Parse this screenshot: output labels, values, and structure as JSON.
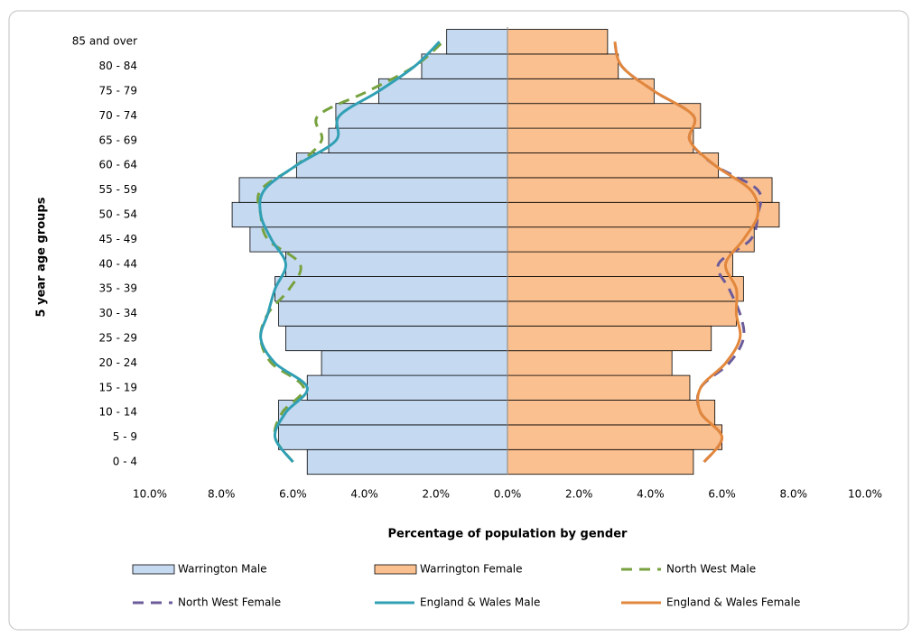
{
  "chart_data": {
    "type": "pyramid",
    "xlabel": "Percentage of population by gender",
    "ylabel": "5 year age groups",
    "categories": [
      "0 - 4",
      "5 - 9",
      "10 - 14",
      "15 - 19",
      "20 - 24",
      "25 - 29",
      "30 - 34",
      "35 - 39",
      "40 - 44",
      "45 - 49",
      "50 - 54",
      "55 - 59",
      "60 - 64",
      "65 - 69",
      "70 - 74",
      "75 - 79",
      "80 - 84",
      "85 and over"
    ],
    "xlim": [
      -10,
      10
    ],
    "xticks": [
      {
        "value": -10,
        "label": "10.0%"
      },
      {
        "value": -8,
        "label": "8.0%"
      },
      {
        "value": -6,
        "label": "6.0%"
      },
      {
        "value": -4,
        "label": "4.0%"
      },
      {
        "value": -2,
        "label": "2.0%"
      },
      {
        "value": 0,
        "label": "0.0%"
      },
      {
        "value": 2,
        "label": "2.0%"
      },
      {
        "value": 4,
        "label": "4.0%"
      },
      {
        "value": 6,
        "label": "6.0%"
      },
      {
        "value": 8,
        "label": "8.0%"
      },
      {
        "value": 10,
        "label": "10.0%"
      }
    ],
    "series": [
      {
        "name": "Warrington Male",
        "kind": "bar",
        "side": "left",
        "color": "#c5d9f1",
        "values": [
          5.6,
          6.4,
          6.4,
          5.6,
          5.2,
          6.2,
          6.4,
          6.5,
          6.2,
          7.2,
          7.7,
          7.5,
          5.9,
          5.0,
          4.8,
          3.6,
          2.4,
          1.7
        ]
      },
      {
        "name": "Warrington Female",
        "kind": "bar",
        "side": "right",
        "color": "#fac090",
        "values": [
          5.2,
          6.0,
          5.8,
          5.1,
          4.6,
          5.7,
          6.4,
          6.6,
          6.3,
          6.9,
          7.6,
          7.4,
          5.9,
          5.2,
          5.4,
          4.1,
          3.1,
          2.8
        ]
      },
      {
        "name": "North West Male",
        "kind": "line",
        "dash": true,
        "side": "left",
        "color": "#77a23f",
        "values": [
          6.0,
          6.5,
          6.3,
          5.7,
          6.6,
          6.9,
          6.7,
          6.1,
          5.8,
          6.7,
          6.9,
          6.9,
          5.9,
          5.2,
          5.3,
          3.9,
          2.6,
          1.8
        ]
      },
      {
        "name": "North West Female",
        "kind": "line",
        "dash": true,
        "side": "right",
        "color": "#6b5b9a",
        "values": [
          5.5,
          6.0,
          5.4,
          5.4,
          6.2,
          6.6,
          6.5,
          6.2,
          5.9,
          6.8,
          7.0,
          7.0,
          5.8,
          5.1,
          5.2,
          4.1,
          3.2,
          3.0
        ]
      },
      {
        "name": "England & Wales Male",
        "kind": "line",
        "dash": false,
        "side": "left",
        "color": "#31a0b4",
        "values": [
          6.0,
          6.5,
          6.2,
          5.6,
          6.5,
          6.9,
          6.7,
          6.5,
          6.2,
          6.6,
          6.9,
          6.8,
          5.9,
          4.8,
          4.7,
          3.6,
          2.6,
          1.9
        ]
      },
      {
        "name": "England & Wales Female",
        "kind": "line",
        "dash": false,
        "side": "right",
        "color": "#e2873c",
        "values": [
          5.5,
          6.0,
          5.4,
          5.4,
          6.1,
          6.5,
          6.4,
          6.4,
          6.1,
          6.6,
          7.0,
          6.8,
          5.8,
          5.1,
          5.2,
          4.1,
          3.2,
          3.0
        ]
      }
    ],
    "legend": "bottom"
  }
}
